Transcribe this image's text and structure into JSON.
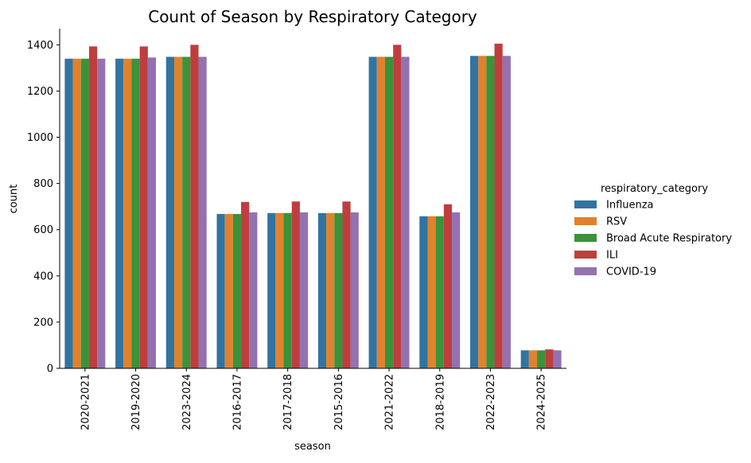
{
  "chart_data": {
    "type": "bar",
    "title": "Count of Season by Respiratory Category",
    "xlabel": "season",
    "ylabel": "count",
    "ylim": [
      0,
      1470
    ],
    "yticks": [
      0,
      200,
      400,
      600,
      800,
      1000,
      1200,
      1400
    ],
    "grid": false,
    "legend_position": "right",
    "legend_title": "respiratory_category",
    "categories": [
      "2020-2021",
      "2019-2020",
      "2023-2024",
      "2016-2017",
      "2017-2018",
      "2015-2016",
      "2021-2022",
      "2018-2019",
      "2022-2023",
      "2024-2025"
    ],
    "series": [
      {
        "name": "Influenza",
        "color": "#3274a1",
        "values": [
          1340,
          1340,
          1348,
          668,
          672,
          672,
          1348,
          658,
          1352,
          78
        ]
      },
      {
        "name": "RSV",
        "color": "#e1812c",
        "values": [
          1340,
          1340,
          1348,
          668,
          672,
          672,
          1348,
          658,
          1352,
          78
        ]
      },
      {
        "name": "Broad Acute Respiratory",
        "color": "#3a923a",
        "values": [
          1340,
          1340,
          1348,
          668,
          672,
          672,
          1348,
          658,
          1352,
          78
        ]
      },
      {
        "name": "ILI",
        "color": "#c03d3e",
        "values": [
          1393,
          1393,
          1400,
          720,
          722,
          722,
          1400,
          710,
          1405,
          82
        ]
      },
      {
        "name": "COVID-19",
        "color": "#9372b2",
        "values": [
          1340,
          1345,
          1348,
          675,
          675,
          675,
          1348,
          675,
          1352,
          78
        ]
      }
    ]
  }
}
